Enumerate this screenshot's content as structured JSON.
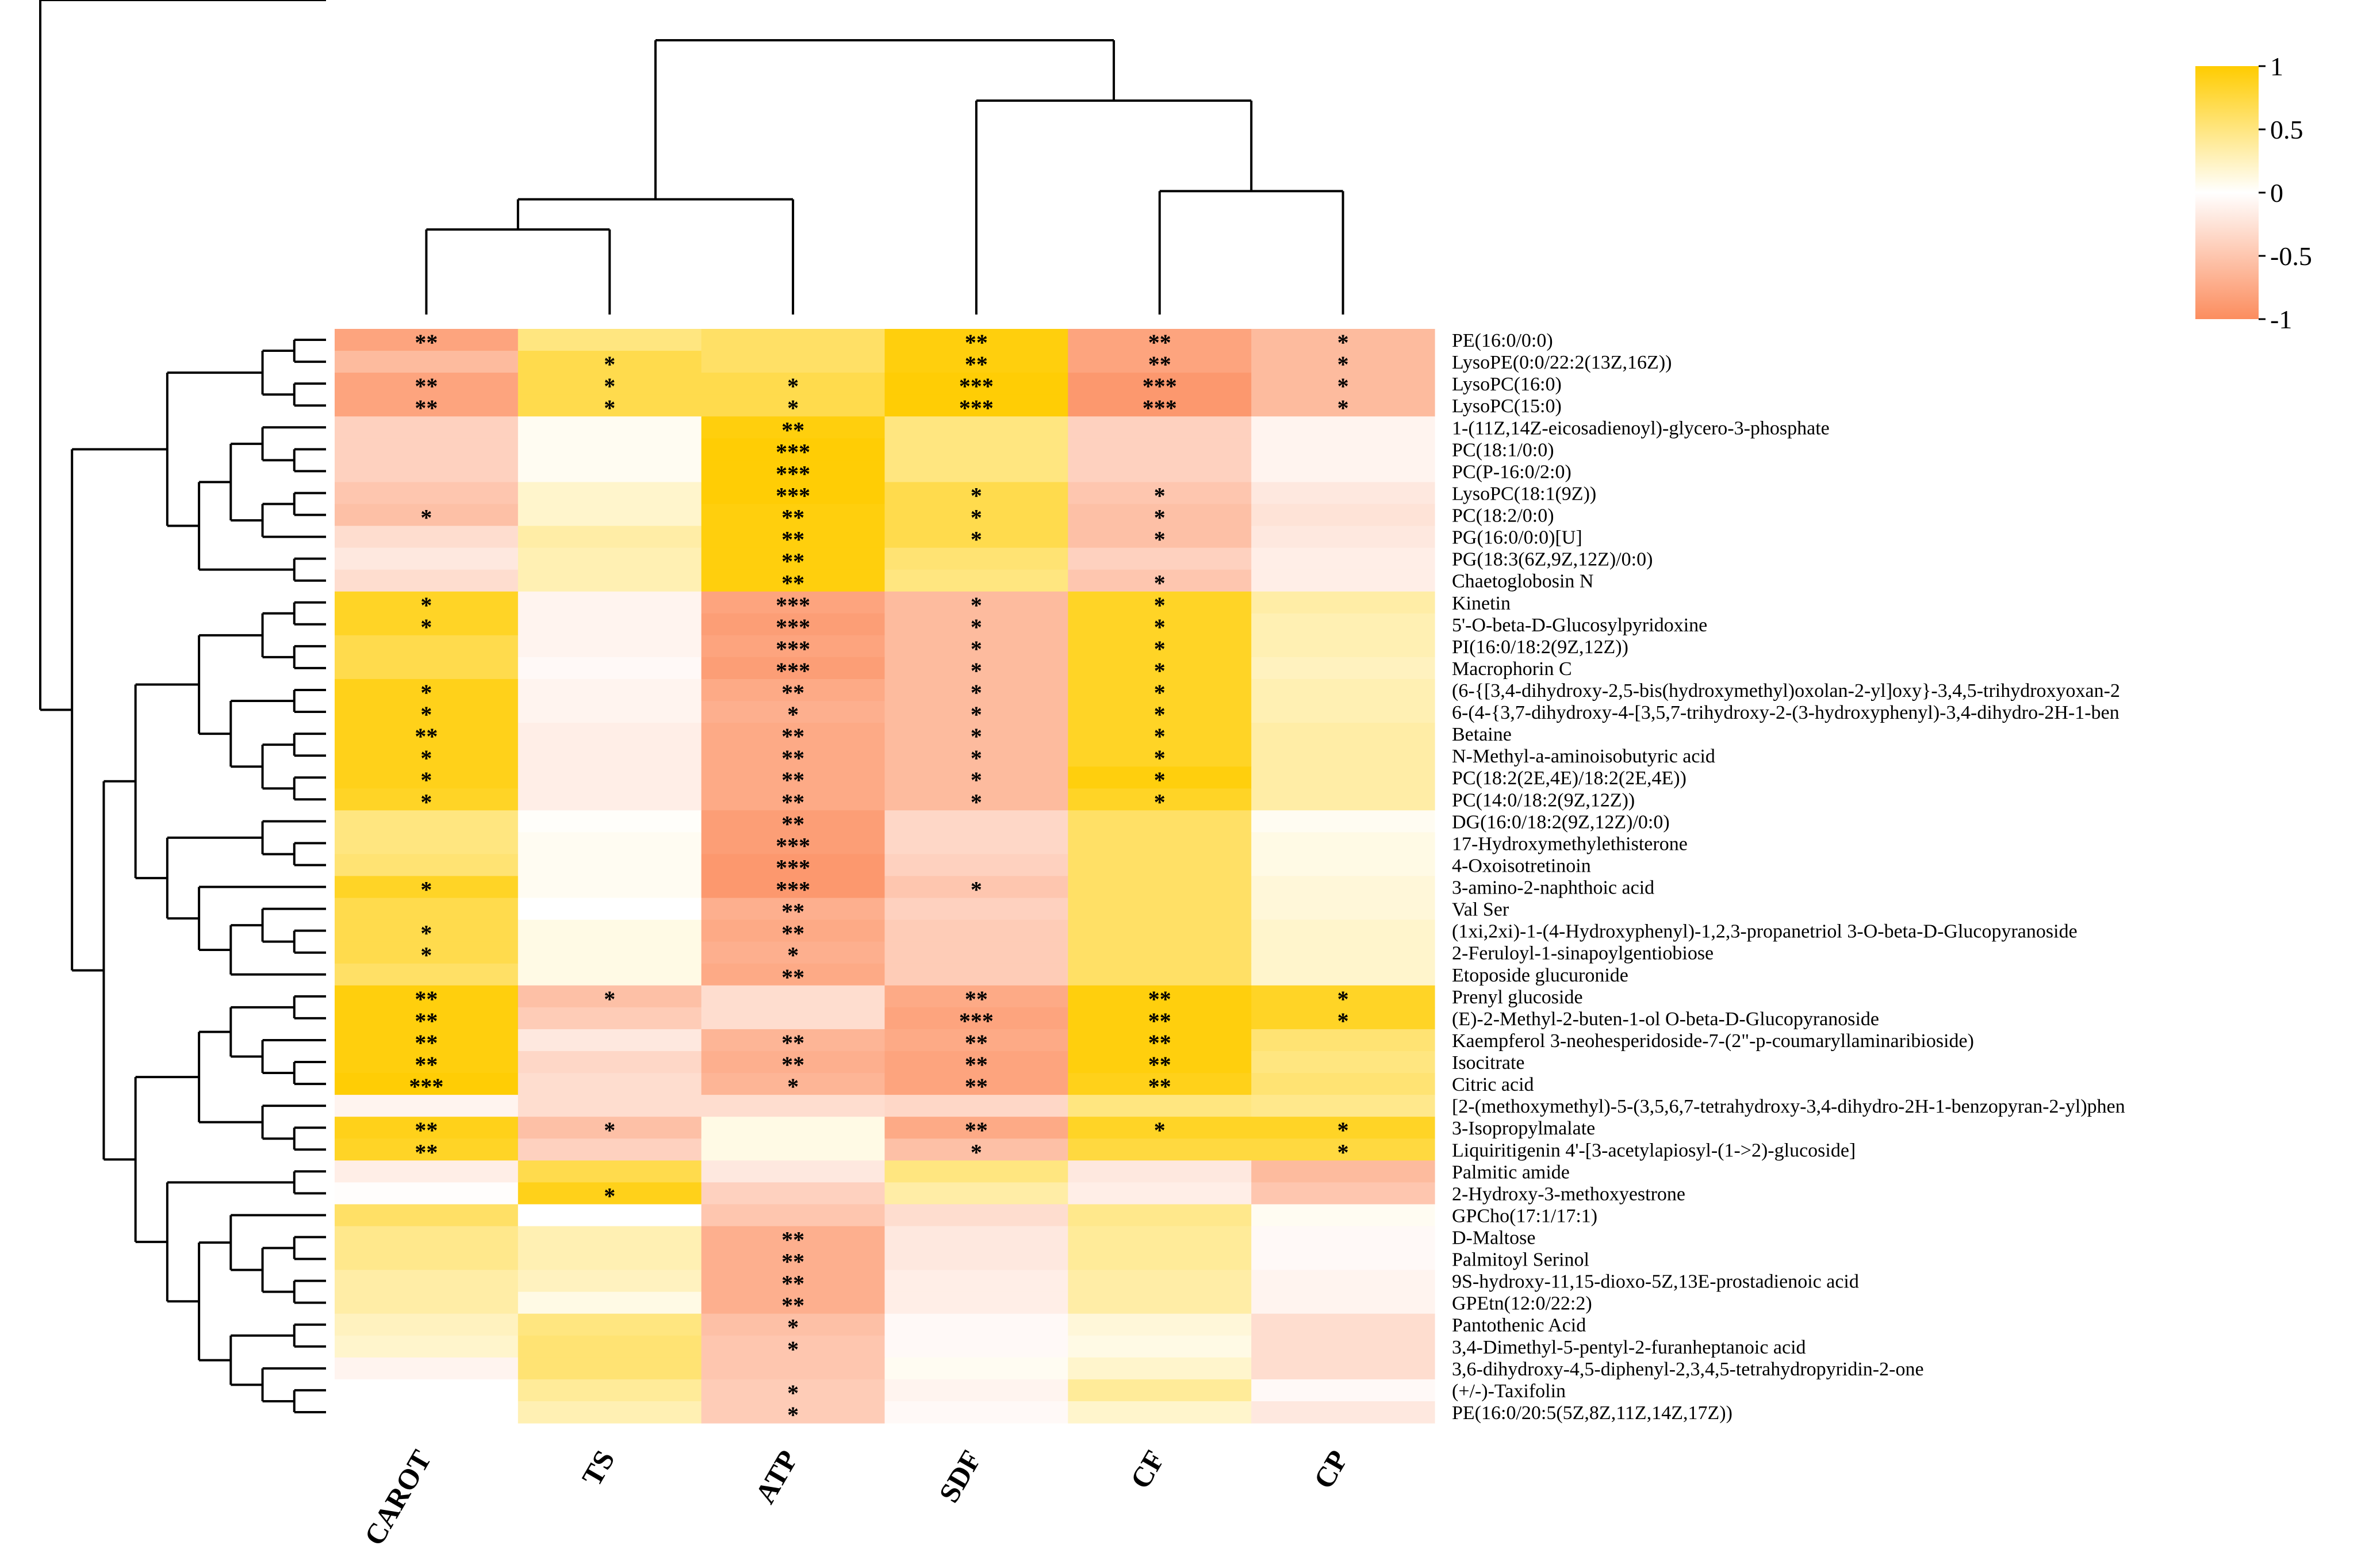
{
  "chart_data": {
    "type": "heatmap",
    "title": "",
    "columns": [
      "CAROT",
      "TS",
      "ATP",
      "SDF",
      "CF",
      "CP"
    ],
    "rows": [
      "PE(16:0/0:0)",
      "LysoPE(0:0/22:2(13Z,16Z))",
      "LysoPC(16:0)",
      "LysoPC(15:0)",
      "1-(11Z,14Z-eicosadienoyl)-glycero-3-phosphate",
      "PC(18:1/0:0)",
      "PC(P-16:0/2:0)",
      "LysoPC(18:1(9Z))",
      "PC(18:2/0:0)",
      "PG(16:0/0:0)[U]",
      "PG(18:3(6Z,9Z,12Z)/0:0)",
      "Chaetoglobosin N",
      "Kinetin",
      "5'-O-beta-D-Glucosylpyridoxine",
      "PI(16:0/18:2(9Z,12Z))",
      "Macrophorin C",
      "(6-{[3,4-dihydroxy-2,5-bis(hydroxymethyl)oxolan-2-yl]oxy}-3,4,5-trihydroxyoxan-2",
      "6-(4-{3,7-dihydroxy-4-[3,5,7-trihydroxy-2-(3-hydroxyphenyl)-3,4-dihydro-2H-1-ben",
      "Betaine",
      "N-Methyl-a-aminoisobutyric acid",
      "PC(18:2(2E,4E)/18:2(2E,4E))",
      "PC(14:0/18:2(9Z,12Z))",
      "DG(16:0/18:2(9Z,12Z)/0:0)",
      "17-Hydroxymethylethisterone",
      "4-Oxoisotretinoin",
      "3-amino-2-naphthoic acid",
      "Val Ser",
      "(1xi,2xi)-1-(4-Hydroxyphenyl)-1,2,3-propanetriol 3-O-beta-D-Glucopyranoside",
      "2-Feruloyl-1-sinapoylgentiobiose",
      "Etoposide glucuronide",
      "Prenyl glucoside",
      "(E)-2-Methyl-2-buten-1-ol O-beta-D-Glucopyranoside",
      "Kaempferol 3-neohesperidoside-7-(2\"-p-coumaryllaminaribioside)",
      "Isocitrate",
      "Citric acid",
      "[2-(methoxymethyl)-5-(3,5,6,7-tetrahydroxy-3,4-dihydro-2H-1-benzopyran-2-yl)phen",
      "3-Isopropylmalate",
      "Liquiritigenin 4'-[3-acetylapiosyl-(1->2)-glucoside]",
      "Palmitic amide",
      "2-Hydroxy-3-methoxyestrone",
      "GPCho(17:1/17:1)",
      "D-Maltose",
      "Palmitoyl Serinol",
      "9S-hydroxy-11,15-dioxo-5Z,13E-prostadienoic acid",
      "GPEtn(12:0/22:2)",
      "Pantothenic Acid",
      "3,4-Dimethyl-5-pentyl-2-furanheptanoic acid",
      "3,6-dihydroxy-4,5-diphenyl-2,3,4,5-tetrahydropyridin-2-one",
      "(+/-)-Taxifolin",
      "PE(16:0/20:5(5Z,8Z,11Z,14Z,17Z))"
    ],
    "values": [
      [
        -0.8,
        0.5,
        0.6,
        0.95,
        -0.8,
        -0.6
      ],
      [
        -0.6,
        0.7,
        0.6,
        0.95,
        -0.8,
        -0.6
      ],
      [
        -0.8,
        0.7,
        0.7,
        0.98,
        -0.9,
        -0.6
      ],
      [
        -0.8,
        0.7,
        0.7,
        0.98,
        -0.9,
        -0.6
      ],
      [
        -0.4,
        0.05,
        0.95,
        0.5,
        -0.4,
        -0.1
      ],
      [
        -0.4,
        0.05,
        0.98,
        0.5,
        -0.4,
        -0.1
      ],
      [
        -0.4,
        0.05,
        0.98,
        0.5,
        -0.4,
        -0.1
      ],
      [
        -0.5,
        0.2,
        0.98,
        0.7,
        -0.5,
        -0.2
      ],
      [
        -0.55,
        0.2,
        0.95,
        0.7,
        -0.55,
        -0.25
      ],
      [
        -0.3,
        0.35,
        0.95,
        0.7,
        -0.55,
        -0.2
      ],
      [
        -0.2,
        0.3,
        0.95,
        0.55,
        -0.4,
        -0.15
      ],
      [
        -0.3,
        0.3,
        0.95,
        0.5,
        -0.5,
        -0.15
      ],
      [
        0.85,
        -0.1,
        -0.8,
        -0.6,
        0.85,
        0.35
      ],
      [
        0.85,
        -0.1,
        -0.85,
        -0.6,
        0.85,
        0.3
      ],
      [
        0.7,
        -0.1,
        -0.8,
        -0.6,
        0.85,
        0.3
      ],
      [
        0.7,
        -0.05,
        -0.85,
        -0.6,
        0.85,
        0.25
      ],
      [
        0.9,
        -0.1,
        -0.75,
        -0.6,
        0.85,
        0.3
      ],
      [
        0.9,
        -0.1,
        -0.7,
        -0.6,
        0.85,
        0.3
      ],
      [
        0.9,
        -0.15,
        -0.75,
        -0.6,
        0.85,
        0.35
      ],
      [
        0.9,
        -0.15,
        -0.75,
        -0.6,
        0.85,
        0.35
      ],
      [
        0.9,
        -0.15,
        -0.75,
        -0.6,
        0.95,
        0.35
      ],
      [
        0.85,
        -0.15,
        -0.75,
        -0.6,
        0.85,
        0.35
      ],
      [
        0.5,
        0.02,
        -0.85,
        -0.35,
        0.6,
        0.05
      ],
      [
        0.5,
        0.05,
        -0.85,
        -0.35,
        0.6,
        0.1
      ],
      [
        0.55,
        0.05,
        -0.9,
        -0.4,
        0.6,
        0.1
      ],
      [
        0.85,
        0.05,
        -0.9,
        -0.5,
        0.6,
        0.15
      ],
      [
        0.7,
        0.0,
        -0.7,
        -0.4,
        0.6,
        0.15
      ],
      [
        0.7,
        0.1,
        -0.75,
        -0.45,
        0.6,
        0.2
      ],
      [
        0.7,
        0.1,
        -0.7,
        -0.45,
        0.6,
        0.2
      ],
      [
        0.6,
        0.1,
        -0.75,
        -0.45,
        0.6,
        0.2
      ],
      [
        0.95,
        -0.55,
        -0.3,
        -0.75,
        0.95,
        0.85
      ],
      [
        0.95,
        -0.45,
        -0.3,
        -0.8,
        0.95,
        0.85
      ],
      [
        0.95,
        -0.2,
        -0.65,
        -0.75,
        0.95,
        0.55
      ],
      [
        0.95,
        -0.35,
        -0.7,
        -0.8,
        0.95,
        0.5
      ],
      [
        0.98,
        -0.3,
        -0.65,
        -0.8,
        0.9,
        0.55
      ],
      [
        -0.1,
        -0.3,
        -0.3,
        -0.35,
        0.5,
        0.45
      ],
      [
        0.9,
        -0.55,
        0.1,
        -0.75,
        0.85,
        0.85
      ],
      [
        0.85,
        -0.4,
        0.1,
        -0.55,
        0.75,
        0.75
      ],
      [
        -0.15,
        0.7,
        -0.2,
        0.5,
        -0.2,
        -0.6
      ],
      [
        -0.02,
        0.9,
        -0.4,
        0.35,
        -0.15,
        -0.5
      ],
      [
        0.6,
        0.0,
        -0.5,
        -0.3,
        0.45,
        0.05
      ],
      [
        0.45,
        0.3,
        -0.7,
        -0.2,
        0.4,
        -0.05
      ],
      [
        0.45,
        0.3,
        -0.7,
        -0.2,
        0.4,
        -0.05
      ],
      [
        0.35,
        0.25,
        -0.7,
        -0.15,
        0.35,
        -0.1
      ],
      [
        0.35,
        0.1,
        -0.7,
        -0.15,
        0.35,
        -0.1
      ],
      [
        0.25,
        0.5,
        -0.55,
        -0.05,
        0.15,
        -0.3
      ],
      [
        0.2,
        0.55,
        -0.5,
        -0.05,
        0.1,
        -0.3
      ],
      [
        -0.1,
        0.55,
        -0.5,
        0.05,
        0.2,
        -0.3
      ],
      [
        0.0,
        0.4,
        -0.45,
        -0.1,
        0.4,
        -0.05
      ],
      [
        0.0,
        0.3,
        -0.45,
        -0.05,
        0.2,
        -0.2
      ]
    ],
    "significance": [
      [
        "**",
        "",
        "",
        "**",
        "**",
        "*"
      ],
      [
        "",
        "*",
        "",
        "**",
        "**",
        "*"
      ],
      [
        "**",
        "*",
        "*",
        "***",
        "***",
        "*"
      ],
      [
        "**",
        "*",
        "*",
        "***",
        "***",
        "*"
      ],
      [
        "",
        "",
        "**",
        "",
        "",
        ""
      ],
      [
        "",
        "",
        "***",
        "",
        "",
        ""
      ],
      [
        "",
        "",
        "***",
        "",
        "",
        ""
      ],
      [
        "",
        "",
        "***",
        "*",
        "*",
        ""
      ],
      [
        "*",
        "",
        "**",
        "*",
        "*",
        ""
      ],
      [
        "",
        "",
        "**",
        "*",
        "*",
        ""
      ],
      [
        "",
        "",
        "**",
        "",
        "",
        ""
      ],
      [
        "",
        "",
        "**",
        "",
        "*",
        ""
      ],
      [
        "*",
        "",
        "***",
        "*",
        "*",
        ""
      ],
      [
        "*",
        "",
        "***",
        "*",
        "*",
        ""
      ],
      [
        "",
        "",
        "***",
        "*",
        "*",
        ""
      ],
      [
        "",
        "",
        "***",
        "*",
        "*",
        ""
      ],
      [
        "*",
        "",
        "**",
        "*",
        "*",
        ""
      ],
      [
        "*",
        "",
        "*",
        "*",
        "*",
        ""
      ],
      [
        "**",
        "",
        "**",
        "*",
        "*",
        ""
      ],
      [
        "*",
        "",
        "**",
        "*",
        "*",
        ""
      ],
      [
        "*",
        "",
        "**",
        "*",
        "*",
        ""
      ],
      [
        "*",
        "",
        "**",
        "*",
        "*",
        ""
      ],
      [
        "",
        "",
        "**",
        "",
        "",
        ""
      ],
      [
        "",
        "",
        "***",
        "",
        "",
        ""
      ],
      [
        "",
        "",
        "***",
        "",
        "",
        ""
      ],
      [
        "*",
        "",
        "***",
        "*",
        "",
        ""
      ],
      [
        "",
        "",
        "**",
        "",
        "",
        ""
      ],
      [
        "*",
        "",
        "**",
        "",
        "",
        ""
      ],
      [
        "*",
        "",
        "*",
        "",
        "",
        ""
      ],
      [
        "",
        "",
        "**",
        "",
        "",
        ""
      ],
      [
        "**",
        "*",
        "",
        "**",
        "**",
        "*"
      ],
      [
        "**",
        "",
        "",
        "***",
        "**",
        "*"
      ],
      [
        "**",
        "",
        "**",
        "**",
        "**",
        ""
      ],
      [
        "**",
        "",
        "**",
        "**",
        "**",
        ""
      ],
      [
        "***",
        "",
        "*",
        "**",
        "**",
        ""
      ],
      [
        "",
        "",
        "",
        "",
        "",
        ""
      ],
      [
        "**",
        "*",
        "",
        "**",
        "*",
        "*"
      ],
      [
        "**",
        "",
        "",
        "*",
        "",
        "*"
      ],
      [
        "",
        "",
        "",
        "",
        "",
        ""
      ],
      [
        "",
        "*",
        "",
        "",
        "",
        ""
      ],
      [
        "",
        "",
        "",
        "",
        "",
        ""
      ],
      [
        "",
        "",
        "**",
        "",
        "",
        ""
      ],
      [
        "",
        "",
        "**",
        "",
        "",
        ""
      ],
      [
        "",
        "",
        "**",
        "",
        "",
        ""
      ],
      [
        "",
        "",
        "**",
        "",
        "",
        ""
      ],
      [
        "",
        "",
        "*",
        "",
        "",
        ""
      ],
      [
        "",
        "",
        "*",
        "",
        "",
        ""
      ],
      [
        "",
        "",
        "",
        "",
        "",
        ""
      ],
      [
        "",
        "",
        "*",
        "",
        "",
        ""
      ],
      [
        "",
        "",
        "*",
        "",
        "",
        ""
      ]
    ],
    "value_range": [
      -1,
      1
    ],
    "colorbar_ticks": [
      {
        "value": 1,
        "label": "1"
      },
      {
        "value": 0.5,
        "label": "0.5"
      },
      {
        "value": 0,
        "label": "0"
      },
      {
        "value": -0.5,
        "label": "-0.5"
      },
      {
        "value": -1,
        "label": "-1"
      }
    ],
    "colors": {
      "low": "#fc8d5e",
      "mid": "#ffffff",
      "high": "#ffcc00"
    },
    "column_dendrogram": [
      {
        "a": 0,
        "b": 1,
        "height": 0.31
      },
      {
        "a": 6,
        "b": 2,
        "height": 0.42
      },
      {
        "a": 4,
        "b": 5,
        "height": 0.45
      },
      {
        "a": 3,
        "b": 8,
        "height": 0.78
      },
      {
        "a": 7,
        "b": 9,
        "height": 1.0
      }
    ]
  }
}
